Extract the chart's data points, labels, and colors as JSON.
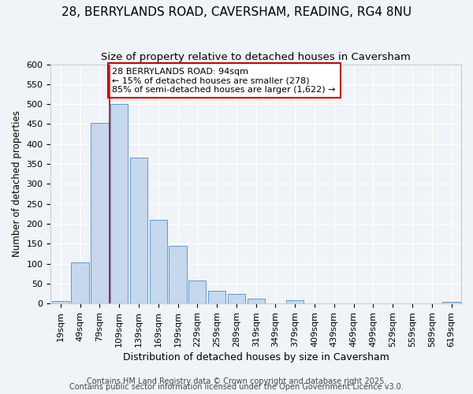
{
  "title1": "28, BERRYLANDS ROAD, CAVERSHAM, READING, RG4 8NU",
  "title2": "Size of property relative to detached houses in Caversham",
  "xlabel": "Distribution of detached houses by size in Caversham",
  "ylabel": "Number of detached properties",
  "bar_labels": [
    "19sqm",
    "49sqm",
    "79sqm",
    "109sqm",
    "139sqm",
    "169sqm",
    "199sqm",
    "229sqm",
    "259sqm",
    "289sqm",
    "319sqm",
    "349sqm",
    "379sqm",
    "409sqm",
    "439sqm",
    "469sqm",
    "499sqm",
    "529sqm",
    "559sqm",
    "589sqm",
    "619sqm"
  ],
  "bar_values": [
    6,
    104,
    453,
    500,
    365,
    210,
    144,
    57,
    33,
    25,
    13,
    0,
    9,
    0,
    0,
    0,
    0,
    0,
    0,
    0,
    4
  ],
  "bar_color": "#c5d8ed",
  "bar_edgecolor": "#5b9bd5",
  "vline_x": 2.5,
  "vline_color": "#cc0000",
  "annotation_text": "28 BERRYLANDS ROAD: 94sqm\n← 15% of detached houses are smaller (278)\n85% of semi-detached houses are larger (1,622) →",
  "annotation_box_edgecolor": "#cc0000",
  "annotation_box_facecolor": "#ffffff",
  "ylim": [
    0,
    600
  ],
  "yticks": [
    0,
    50,
    100,
    150,
    200,
    250,
    300,
    350,
    400,
    450,
    500,
    550,
    600
  ],
  "footer1": "Contains HM Land Registry data © Crown copyright and database right 2025.",
  "footer2": "Contains public sector information licensed under the Open Government Licence v3.0.",
  "bg_color": "#f0f4f8",
  "plot_bg_color": "#f0f4f8",
  "title1_fontsize": 11,
  "title2_fontsize": 9.5,
  "xlabel_fontsize": 9,
  "ylabel_fontsize": 8.5,
  "tick_fontsize": 8,
  "footer_fontsize": 7,
  "annot_fontsize": 8
}
